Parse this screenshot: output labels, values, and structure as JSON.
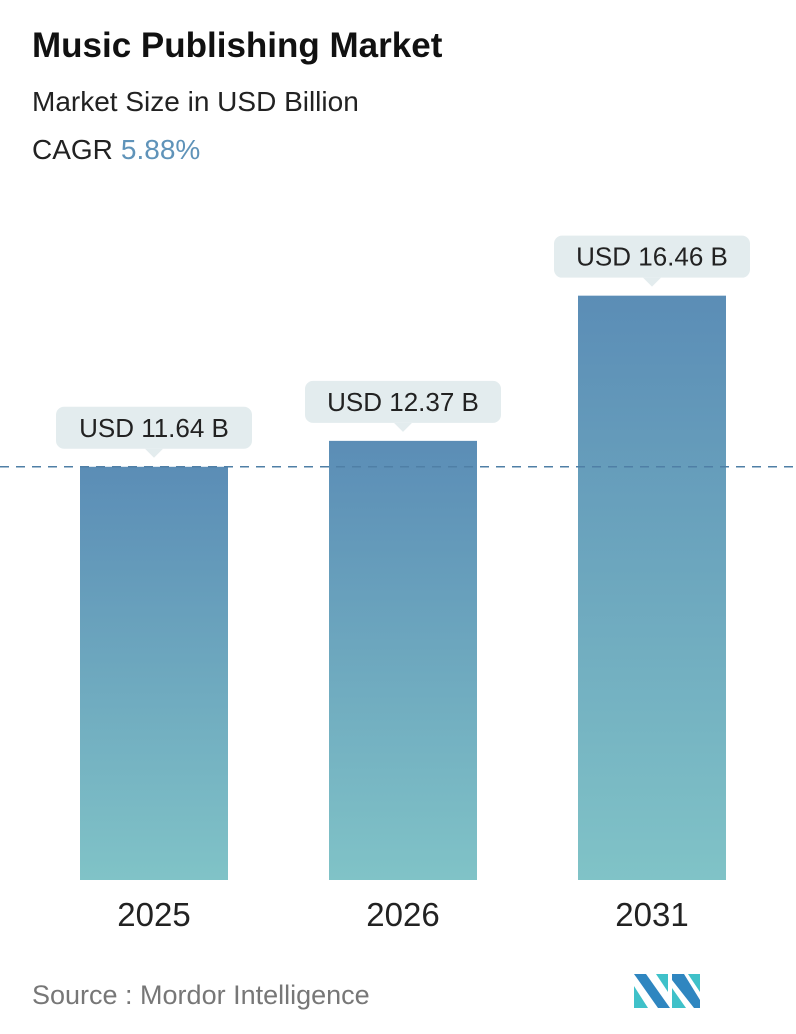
{
  "header": {
    "title": "Music Publishing Market",
    "subtitle": "Market Size in USD Billion",
    "cagr_label": "CAGR",
    "cagr_value": "5.88%"
  },
  "chart_data": {
    "type": "bar",
    "title": "Music Publishing Market",
    "ylabel": "Market Size in USD Billion",
    "categories": [
      "2025",
      "2026",
      "2031"
    ],
    "values": [
      11.64,
      12.37,
      16.46
    ],
    "data_labels": [
      "USD 11.64 B",
      "USD 12.37 B",
      "USD 16.46 B"
    ],
    "reference_line_value": 11.64,
    "grid": false,
    "colors": {
      "bar_top": "#5b8db6",
      "bar_bottom": "#80c3c7",
      "label_bg": "#e3ecee",
      "ref_line": "#4f7fa6",
      "cagr": "#5f93b9"
    }
  },
  "footer": {
    "source": "Source :  Mordor Intelligence",
    "logo_text": "Mordor Intelligence"
  }
}
